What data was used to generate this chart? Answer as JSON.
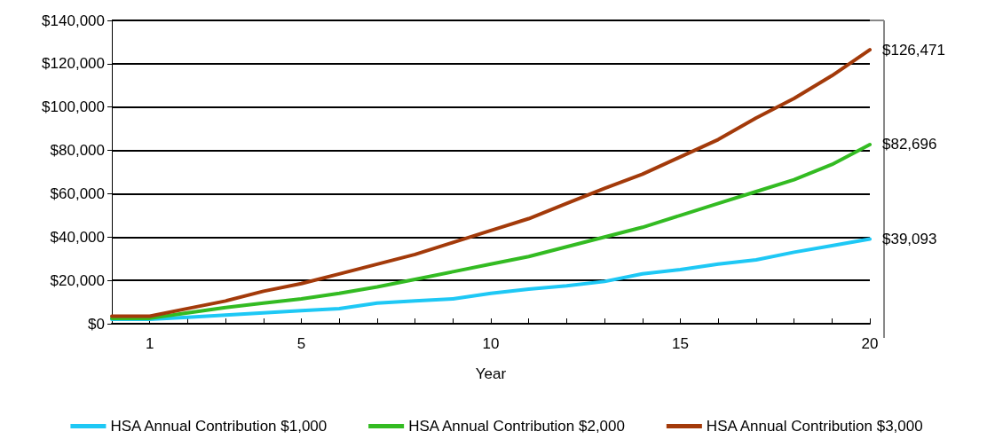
{
  "chart_data": {
    "type": "line",
    "xlabel": "Year",
    "x": [
      0,
      1,
      2,
      3,
      4,
      5,
      6,
      7,
      8,
      9,
      10,
      11,
      12,
      13,
      14,
      15,
      16,
      17,
      18,
      19,
      20
    ],
    "xlim": [
      0,
      20
    ],
    "xticks": [
      {
        "value": 0,
        "label": null
      },
      1,
      {
        "value": 2,
        "label": null
      },
      {
        "value": 3,
        "label": null
      },
      {
        "value": 4,
        "label": null
      },
      5,
      {
        "value": 6,
        "label": null
      },
      {
        "value": 7,
        "label": null
      },
      {
        "value": 8,
        "label": null
      },
      {
        "value": 9,
        "label": null
      },
      10,
      {
        "value": 11,
        "label": null
      },
      {
        "value": 12,
        "label": null
      },
      {
        "value": 13,
        "label": null
      },
      {
        "value": 14,
        "label": null
      },
      15,
      {
        "value": 16,
        "label": null
      },
      {
        "value": 17,
        "label": null
      },
      {
        "value": 18,
        "label": null
      },
      {
        "value": 19,
        "label": null
      },
      20
    ],
    "ylim": [
      0,
      140000
    ],
    "yticks": [
      {
        "value": 0,
        "label": "$0"
      },
      {
        "value": 20000,
        "label": "$20,000"
      },
      {
        "value": 40000,
        "label": "$40,000"
      },
      {
        "value": 60000,
        "label": "$60,000"
      },
      {
        "value": 80000,
        "label": "$80,000"
      },
      {
        "value": 100000,
        "label": "$100,000"
      },
      {
        "value": 120000,
        "label": "$120,000"
      },
      {
        "value": 140000,
        "label": "$140,000"
      }
    ],
    "grid": "y",
    "legend": "bottom",
    "marker": "none",
    "line_style": "solid",
    "series": [
      {
        "name": "HSA Annual Contribution $1,000",
        "color": "#1ec8f5",
        "values": [
          2000,
          2000,
          3000,
          4000,
          5000,
          6000,
          7000,
          9500,
          10500,
          11500,
          14000,
          16000,
          17500,
          19500,
          23000,
          25000,
          27500,
          29500,
          33000,
          36000,
          39093
        ],
        "value_labels": [
          null,
          null,
          null,
          null,
          null,
          null,
          null,
          null,
          null,
          null,
          null,
          null,
          null,
          null,
          null,
          null,
          null,
          null,
          null,
          null,
          "$39,093"
        ]
      },
      {
        "name": "HSA Annual Contribution $2,000",
        "color": "#33bb22",
        "values": [
          2500,
          2500,
          5000,
          7500,
          9500,
          11500,
          14000,
          17000,
          20500,
          24000,
          27500,
          31000,
          35500,
          40000,
          44500,
          50000,
          55500,
          61000,
          66500,
          73500,
          82696
        ],
        "value_labels": [
          null,
          null,
          null,
          null,
          null,
          null,
          null,
          null,
          null,
          null,
          null,
          null,
          null,
          null,
          null,
          null,
          null,
          null,
          null,
          null,
          "$82,696"
        ]
      },
      {
        "name": "HSA Annual Contribution $3,000",
        "color": "#a33a0a",
        "values": [
          3500,
          3500,
          7000,
          10500,
          15000,
          18500,
          23000,
          27500,
          32000,
          37500,
          43000,
          48500,
          55500,
          62500,
          69000,
          77000,
          85000,
          95000,
          104000,
          114500,
          126471
        ],
        "value_labels": [
          null,
          null,
          null,
          null,
          null,
          null,
          null,
          null,
          null,
          null,
          null,
          null,
          null,
          null,
          null,
          null,
          null,
          null,
          null,
          null,
          "$126,471"
        ]
      }
    ]
  }
}
